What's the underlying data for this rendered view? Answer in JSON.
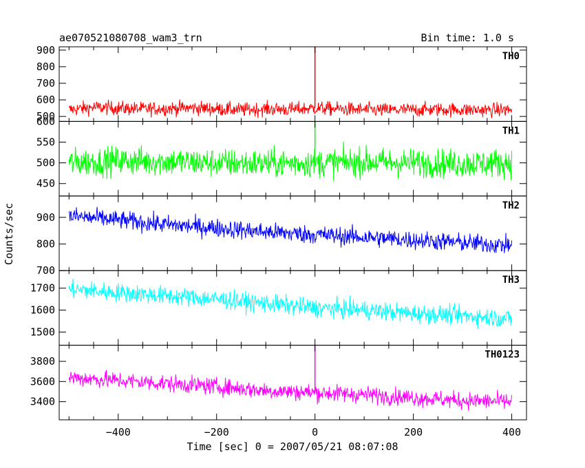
{
  "chart_data": {
    "type": "line",
    "title": "ae070521080708_wam3_trn",
    "subtitle": "Bin time: 1.0 s",
    "xlabel": "Time [sec] 0 = 2007/05/21 08:07:08",
    "ylabel": "Counts/sec",
    "xlim": [
      -520,
      430
    ],
    "x_ticks": [
      -400,
      -200,
      0,
      200,
      400
    ],
    "grid": false,
    "panels": [
      {
        "name": "TH0",
        "color": "#ff0000",
        "ylim": [
          470,
          920
        ],
        "y_ticks": [
          500,
          600,
          700,
          800,
          900
        ],
        "x": [
          -500,
          -450,
          -400,
          -350,
          -300,
          -250,
          -200,
          -150,
          -100,
          -50,
          0,
          50,
          100,
          150,
          200,
          250,
          300,
          350,
          400
        ],
        "y": [
          540,
          555,
          550,
          545,
          548,
          552,
          545,
          540,
          545,
          542,
          550,
          545,
          540,
          538,
          540,
          542,
          540,
          538,
          540
        ],
        "noise": 55,
        "spikes": [
          {
            "x": 0,
            "y": 1000
          }
        ]
      },
      {
        "name": "TH1",
        "color": "#00ff00",
        "ylim": [
          420,
          600
        ],
        "y_ticks": [
          450,
          500,
          550,
          600
        ],
        "x": [
          -500,
          -400,
          -300,
          -200,
          -100,
          0,
          100,
          200,
          300,
          400
        ],
        "y": [
          500,
          505,
          503,
          500,
          498,
          500,
          502,
          500,
          498,
          500
        ],
        "noise": 45,
        "spikes": [
          {
            "x": 0,
            "y": 610
          }
        ]
      },
      {
        "name": "TH2",
        "color": "#0000ff",
        "ylim": [
          700,
          980
        ],
        "y_ticks": [
          700,
          800,
          900
        ],
        "x": [
          -500,
          -400,
          -300,
          -200,
          -100,
          0,
          100,
          200,
          300,
          400
        ],
        "y": [
          905,
          890,
          872,
          860,
          845,
          835,
          825,
          815,
          805,
          795
        ],
        "noise": 45,
        "spikes": []
      },
      {
        "name": "TH3",
        "color": "#00ffff",
        "ylim": [
          1440,
          1780
        ],
        "y_ticks": [
          1500,
          1600,
          1700
        ],
        "x": [
          -500,
          -400,
          -300,
          -200,
          -100,
          0,
          100,
          200,
          300,
          400
        ],
        "y": [
          1695,
          1680,
          1665,
          1650,
          1630,
          1610,
          1600,
          1585,
          1575,
          1560
        ],
        "noise": 55,
        "spikes": []
      },
      {
        "name": "TH0123",
        "color": "#ff00ff",
        "ylim": [
          3220,
          3960
        ],
        "y_ticks": [
          3400,
          3600,
          3800
        ],
        "x": [
          -500,
          -400,
          -300,
          -200,
          -100,
          0,
          100,
          200,
          300,
          400
        ],
        "y": [
          3640,
          3610,
          3580,
          3550,
          3510,
          3490,
          3470,
          3440,
          3410,
          3400
        ],
        "noise": 110,
        "spikes": [
          {
            "x": 0,
            "y": 4100
          }
        ]
      }
    ]
  }
}
